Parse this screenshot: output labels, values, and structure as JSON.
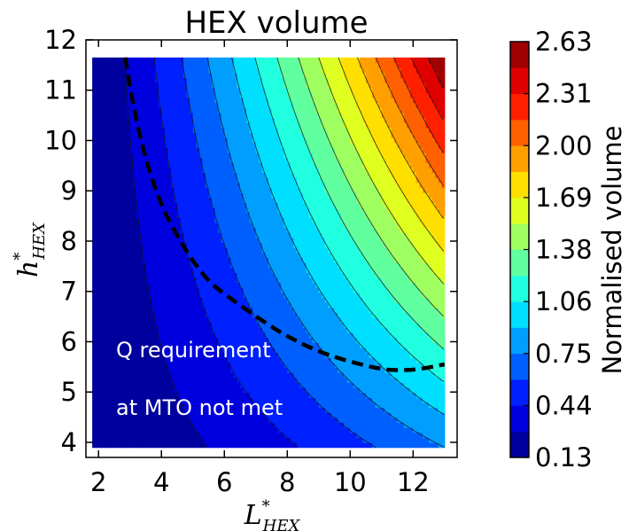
{
  "chart_data": {
    "type": "contour",
    "title": "HEX volume",
    "xlabel": {
      "base": "L",
      "sup": "*",
      "sub": "HEX"
    },
    "ylabel": {
      "base": "h",
      "sup": "*",
      "sub": "HEX"
    },
    "xlim": [
      1.6,
      13.4
    ],
    "ylim": [
      3.7,
      12.0
    ],
    "data_extent": {
      "x": [
        1.8,
        13.0
      ],
      "y": [
        3.9,
        11.65
      ]
    },
    "xticks": [
      2,
      4,
      6,
      8,
      10,
      12
    ],
    "yticks": [
      4,
      5,
      6,
      7,
      8,
      9,
      10,
      11,
      12
    ],
    "colorbar": {
      "label": "Normalised volume",
      "colormap": "jet",
      "min": 0.13,
      "max": 2.63,
      "ticks": [
        "0.13",
        "0.44",
        "0.75",
        "1.06",
        "1.38",
        "1.69",
        "2.00",
        "2.31",
        "2.63"
      ],
      "levels": 16
    },
    "boundary_curve": {
      "style": "dashed",
      "color": "#000000",
      "x": [
        2.85,
        3.1,
        3.5,
        4.0,
        4.5,
        5.0,
        5.5,
        6.0,
        7.0,
        8.0,
        9.0,
        10.0,
        11.0,
        11.6,
        12.2,
        13.0
      ],
      "y": [
        11.65,
        10.7,
        9.6,
        8.7,
        8.1,
        7.6,
        7.2,
        6.95,
        6.5,
        6.1,
        5.8,
        5.6,
        5.45,
        5.43,
        5.45,
        5.55
      ]
    },
    "annotations": [
      "Q requirement",
      "at MTO not met"
    ]
  }
}
